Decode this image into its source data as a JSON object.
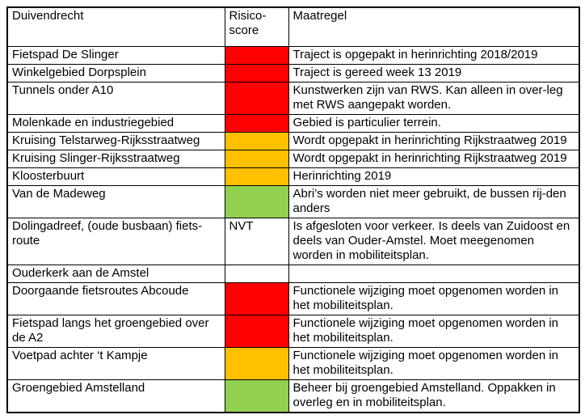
{
  "table": {
    "headers": {
      "area": "Duivendrecht",
      "score": "Risico-score",
      "measure": "Maatregel"
    },
    "colors": {
      "red": "#FF0000",
      "orange": "#FFC000",
      "green": "#92D050",
      "none": "transparent"
    },
    "rows": [
      {
        "area": "Fietspad De Slinger",
        "score": "red",
        "score_label": "",
        "measure": "Traject is opgepakt in herinrichting 2018/2019"
      },
      {
        "area": "Winkelgebied Dorpsplein",
        "score": "red",
        "score_label": "",
        "measure": "Traject is gereed week 13 2019"
      },
      {
        "area": "Tunnels onder A10",
        "score": "red",
        "score_label": "",
        "measure": "Kunstwerken zijn van RWS. Kan alleen in over-leg met RWS aangepakt worden."
      },
      {
        "area": "Molenkade en industriegebied",
        "score": "red",
        "score_label": "",
        "measure": "Gebied is particulier terrein."
      },
      {
        "area": "Kruising Telstarweg-Rijksstraatweg",
        "score": "orange",
        "score_label": "",
        "measure": "Wordt opgepakt in herinrichting Rijkstraatweg 2019"
      },
      {
        "area": "Kruising Slinger-Rijksstraatweg",
        "score": "orange",
        "score_label": "",
        "measure": "Wordt opgepakt in herinrichting Rijkstraatweg 2019"
      },
      {
        "area": "Kloosterbuurt",
        "score": "orange",
        "score_label": "",
        "measure": "Herinrichting 2019"
      },
      {
        "area": "Van de Madeweg",
        "score": "green",
        "score_label": "",
        "measure": "Abri’s worden niet meer gebruikt, de bussen rij-den anders"
      },
      {
        "area": "Dolingadreef, (oude busbaan) fiets-route",
        "score": "none",
        "score_label": "NVT",
        "measure": "Is afgesloten voor verkeer. Is deels van Zuidoost en deels van Ouder-Amstel. Moet meegenomen worden in mobiliteitsplan."
      },
      {
        "area": "Ouderkerk aan de Amstel",
        "score": "none",
        "score_label": "",
        "measure": ""
      },
      {
        "area": "Doorgaande fietsroutes Abcoude",
        "score": "red",
        "score_label": "",
        "measure": "Functionele wijziging moet opgenomen worden in het mobiliteitsplan."
      },
      {
        "area": "Fietspad langs het groengebied over de A2",
        "score": "red",
        "score_label": "",
        "measure": "Functionele wijziging moet opgenomen worden in het mobiliteitsplan."
      },
      {
        "area": "Voetpad achter ‘t Kampje",
        "score": "orange",
        "score_label": "",
        "measure": "Functionele wijziging moet opgenomen worden in het mobiliteitsplan."
      },
      {
        "area": "Groengebied Amstelland",
        "score": "green",
        "score_label": "",
        "measure": "Beheer bij groengebied Amstelland. Oppakken in overleg en in mobiliteitsplan."
      }
    ]
  }
}
